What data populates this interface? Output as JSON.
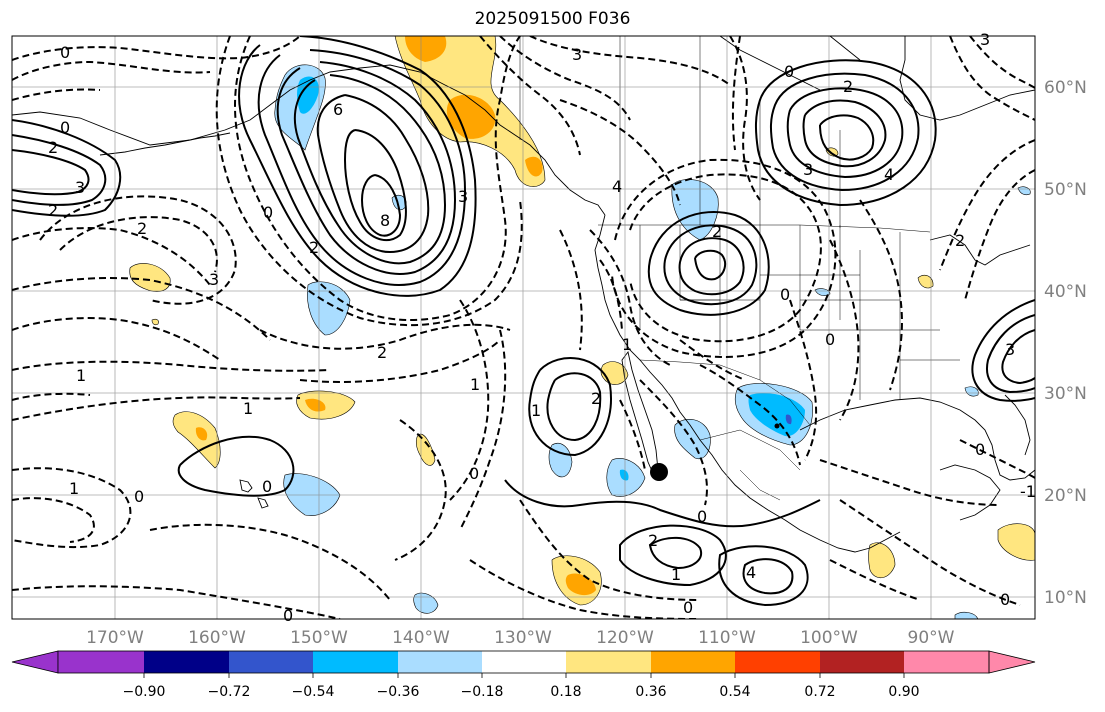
{
  "title": "2025091500 F036",
  "lon_labels": [
    "170°W",
    "160°W",
    "150°W",
    "140°W",
    "130°W",
    "120°W",
    "110°W",
    "100°W",
    "90°W"
  ],
  "lat_labels": [
    "60°N",
    "50°N",
    "40°N",
    "30°N",
    "20°N",
    "10°N"
  ],
  "colorbar": {
    "colors": [
      "#9933cc",
      "#000088",
      "#3355cc",
      "#00bbff",
      "#aaddff",
      "#ffffff",
      "#ffe680",
      "#ffa500",
      "#ff4000",
      "#b22222",
      "#ff88aa"
    ],
    "labels": [
      "−0.90",
      "−0.72",
      "−0.54",
      "−0.36",
      "−0.18",
      "0.18",
      "0.36",
      "0.54",
      "0.72",
      "0.90"
    ]
  },
  "contour_labels": [
    "3",
    "0",
    "2",
    "3",
    "2",
    "6",
    "8",
    "0",
    "2",
    "3",
    "4",
    "2",
    "3",
    "3",
    "4",
    "2",
    "0",
    "3",
    "0",
    "2",
    "1",
    "1",
    "0",
    "0",
    "1",
    "2",
    "2",
    "0",
    "1",
    "2",
    "0",
    "1",
    "0",
    "0",
    "4",
    "1",
    "0",
    "0",
    "2",
    "3",
    "0",
    "-1",
    "0",
    "1"
  ]
}
